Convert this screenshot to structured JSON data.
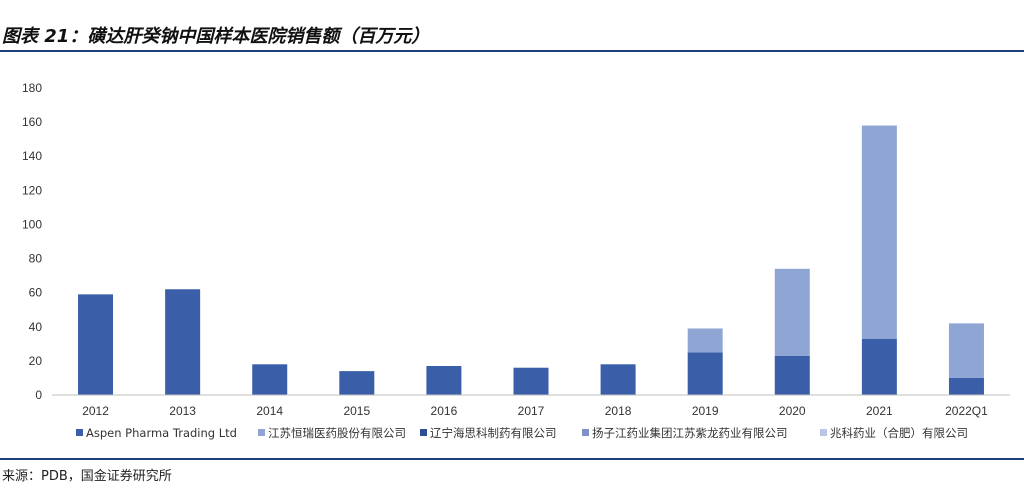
{
  "title": "图表 21：磺达肝癸钠中国样本医院销售额（百万元）",
  "source": "来源：PDB，国金证券研究所",
  "chart_data": {
    "type": "bar",
    "stacked": true,
    "title": "",
    "xlabel": "",
    "ylabel": "",
    "ylim": [
      0,
      180
    ],
    "yticks": [
      0,
      20,
      40,
      60,
      80,
      100,
      120,
      140,
      160,
      180
    ],
    "grid": false,
    "legend_position": "bottom",
    "categories": [
      "2012",
      "2013",
      "2014",
      "2015",
      "2016",
      "2017",
      "2018",
      "2019",
      "2020",
      "2021",
      "2022Q1"
    ],
    "series": [
      {
        "name": "Aspen Pharma Trading Ltd",
        "color": "#3a5ea8",
        "values": [
          59,
          62,
          18,
          14,
          17,
          16,
          18,
          25,
          23,
          33,
          10
        ]
      },
      {
        "name": "江苏恒瑞医药股份有限公司",
        "color": "#8fa5d4",
        "values": [
          0,
          0,
          0,
          0,
          0,
          0,
          0,
          14,
          51,
          125,
          32
        ]
      },
      {
        "name": "辽宁海思科制药有限公司",
        "color": "#2e4f96",
        "values": [
          0,
          0,
          0,
          0,
          0,
          0,
          0,
          0,
          0,
          0,
          0
        ]
      },
      {
        "name": "扬子江药业集团江苏紫龙药业有限公司",
        "color": "#7d93c6",
        "values": [
          0,
          0,
          0,
          0,
          0,
          0,
          0,
          0,
          0,
          0,
          0
        ]
      },
      {
        "name": "兆科药业（合肥）有限公司",
        "color": "#b9c6e4",
        "values": [
          0,
          0,
          0,
          0,
          0,
          0,
          0,
          0,
          0,
          0,
          0
        ]
      }
    ]
  }
}
